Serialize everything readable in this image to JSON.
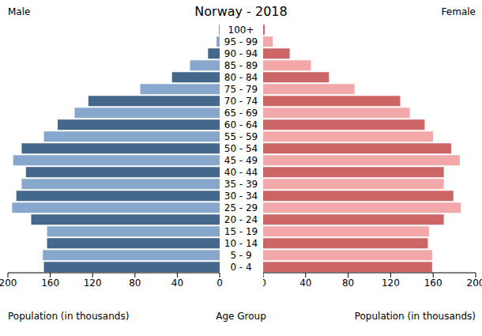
{
  "chart_data": {
    "type": "bar",
    "title": "Norway - 2018",
    "orientation": "horizontal",
    "categories": [
      "100+",
      "95 - 99",
      "90 - 94",
      "85 - 89",
      "80 - 84",
      "75 - 79",
      "70 - 74",
      "65 - 69",
      "60 - 64",
      "55 - 59",
      "50 - 54",
      "45 - 49",
      "40 - 44",
      "35 - 39",
      "30 - 34",
      "25 - 29",
      "20 - 24",
      "15 - 19",
      "10 - 14",
      "5 - 9",
      "0 - 4"
    ],
    "series": [
      {
        "name": "Male",
        "values": [
          0.5,
          3,
          11,
          28,
          45,
          75,
          124,
          137,
          153,
          166,
          187,
          195,
          183,
          187,
          192,
          196,
          178,
          163,
          163,
          167,
          166
        ],
        "colors": [
          "#44678c",
          "#87a8cc",
          "#44678c",
          "#87a8cc",
          "#44678c",
          "#87a8cc",
          "#44678c",
          "#87a8cc",
          "#44678c",
          "#87a8cc",
          "#44678c",
          "#87a8cc",
          "#44678c",
          "#87a8cc",
          "#44678c",
          "#87a8cc",
          "#44678c",
          "#87a8cc",
          "#44678c",
          "#87a8cc",
          "#44678c"
        ]
      },
      {
        "name": "Female",
        "values": [
          1.5,
          9,
          25,
          45,
          62,
          86,
          129,
          138,
          152,
          160,
          177,
          185,
          170,
          170,
          179,
          186,
          170,
          156,
          155,
          159,
          159
        ],
        "colors": [
          "#cc6666",
          "#f2a8a8",
          "#cc6666",
          "#f2a8a8",
          "#cc6666",
          "#f2a8a8",
          "#cc6666",
          "#f2a8a8",
          "#cc6666",
          "#f2a8a8",
          "#cc6666",
          "#f2a8a8",
          "#cc6666",
          "#f2a8a8",
          "#cc6666",
          "#f2a8a8",
          "#cc6666",
          "#f2a8a8",
          "#cc6666",
          "#f2a8a8",
          "#cc6666"
        ]
      }
    ],
    "xlim": [
      0,
      200
    ],
    "xticks": [
      0,
      40,
      80,
      120,
      160,
      200
    ],
    "x_label": "Population (in thousands)",
    "y_label": "Age Group"
  }
}
